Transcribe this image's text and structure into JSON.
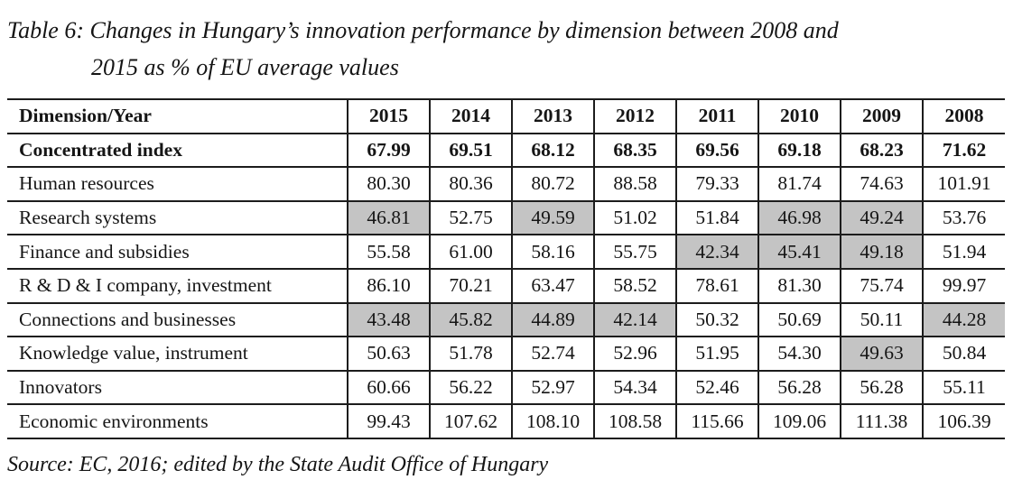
{
  "title": {
    "lines": [
      "Table 6: Changes in Hungary’s innovation performance by dimension between 2008 and",
      "2015 as % of EU average values"
    ]
  },
  "table": {
    "columns": [
      "Dimension/Year",
      "2015",
      "2014",
      "2013",
      "2012",
      "2011",
      "2010",
      "2009",
      "2008"
    ],
    "rows": [
      {
        "label": "Concentrated index",
        "bold": true,
        "values": [
          "67.99",
          "69.51",
          "68.12",
          "68.35",
          "69.56",
          "69.18",
          "68.23",
          "71.62"
        ],
        "shaded": []
      },
      {
        "label": "Human resources",
        "values": [
          "80.30",
          "80.36",
          "80.72",
          "88.58",
          "79.33",
          "81.74",
          "74.63",
          "101.91"
        ],
        "shaded": []
      },
      {
        "label": "Research systems",
        "values": [
          "46.81",
          "52.75",
          "49.59",
          "51.02",
          "51.84",
          "46.98",
          "49.24",
          "53.76"
        ],
        "shaded": [
          0,
          2,
          5,
          6
        ]
      },
      {
        "label": "Finance and subsidies",
        "values": [
          "55.58",
          "61.00",
          "58.16",
          "55.75",
          "42.34",
          "45.41",
          "49.18",
          "51.94"
        ],
        "shaded": [
          4,
          5,
          6
        ]
      },
      {
        "label": "R & D & I company, investment",
        "values": [
          "86.10",
          "70.21",
          "63.47",
          "58.52",
          "78.61",
          "81.30",
          "75.74",
          "99.97"
        ],
        "shaded": []
      },
      {
        "label": "Connections and businesses",
        "values": [
          "43.48",
          "45.82",
          "44.89",
          "42.14",
          "50.32",
          "50.69",
          "50.11",
          "44.28"
        ],
        "shaded": [
          0,
          1,
          2,
          3,
          7
        ]
      },
      {
        "label": "Knowledge value, instrument",
        "values": [
          "50.63",
          "51.78",
          "52.74",
          "52.96",
          "51.95",
          "54.30",
          "49.63",
          "50.84"
        ],
        "shaded": [
          6
        ]
      },
      {
        "label": "Innovators",
        "values": [
          "60.66",
          "56.22",
          "52.97",
          "54.34",
          "52.46",
          "56.28",
          "56.28",
          "55.11"
        ],
        "shaded": []
      },
      {
        "label": "Economic environments",
        "values": [
          "99.43",
          "107.62",
          "108.10",
          "108.58",
          "115.66",
          "109.06",
          "111.38",
          "106.39"
        ],
        "shaded": []
      }
    ]
  },
  "source": "Source: EC, 2016; edited by the State Audit Office of Hungary",
  "colors": {
    "cell_shade": "#c4c4c4",
    "border": "#1c1c1c",
    "text": "#151515"
  }
}
